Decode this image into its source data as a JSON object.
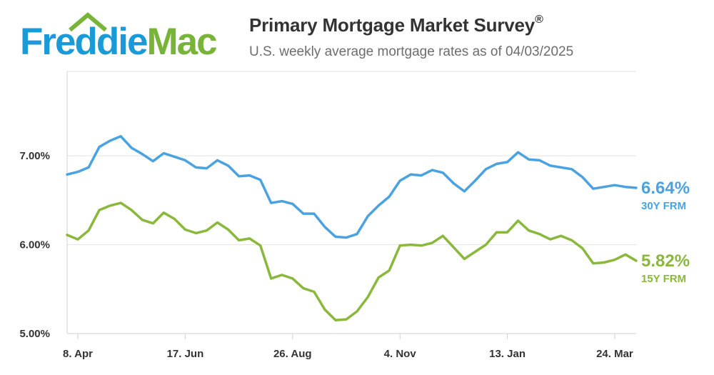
{
  "header": {
    "logo_text": "Freddie Mac",
    "title": "Primary Mortgage Market Survey",
    "title_mark": "®",
    "subtitle": "U.S. weekly average mortgage rates as of 04/03/2025"
  },
  "colors": {
    "series_30y": "#4aa3e0",
    "series_15y": "#8ab83c",
    "logo_blue": "#1a9ad6",
    "logo_green": "#79b43a",
    "grid": "#e3e3e3",
    "axis": "#d0d0d0"
  },
  "chart_data": {
    "type": "line",
    "title": "Primary Mortgage Market Survey",
    "subtitle": "U.S. weekly average mortgage rates as of 04/03/2025",
    "x_tick_labels": [
      "8. Apr",
      "17. Jun",
      "26. Aug",
      "4. Nov",
      "13. Jan",
      "24. Mar"
    ],
    "y_tick_labels": [
      "5.00%",
      "6.00%",
      "7.00%"
    ],
    "ylim": [
      5.0,
      7.95
    ],
    "grid": true,
    "legend": "end-of-line labels",
    "x_start_week": "Mar 28, 2024",
    "x_end_week": "Apr 3, 2025",
    "series": [
      {
        "name": "30Y FRM",
        "last_value_label": "6.64%",
        "values": [
          6.79,
          6.82,
          6.87,
          7.1,
          7.17,
          7.22,
          7.09,
          7.02,
          6.94,
          7.03,
          6.99,
          6.95,
          6.87,
          6.86,
          6.95,
          6.89,
          6.77,
          6.78,
          6.73,
          6.47,
          6.49,
          6.46,
          6.35,
          6.35,
          6.2,
          6.09,
          6.08,
          6.12,
          6.32,
          6.44,
          6.54,
          6.72,
          6.79,
          6.78,
          6.84,
          6.81,
          6.69,
          6.6,
          6.72,
          6.85,
          6.91,
          6.93,
          7.04,
          6.96,
          6.95,
          6.89,
          6.87,
          6.85,
          6.76,
          6.63,
          6.65,
          6.67,
          6.65,
          6.64
        ]
      },
      {
        "name": "15Y FRM",
        "last_value_label": "5.82%",
        "values": [
          6.11,
          6.06,
          6.16,
          6.39,
          6.44,
          6.47,
          6.39,
          6.28,
          6.24,
          6.36,
          6.29,
          6.17,
          6.13,
          6.16,
          6.25,
          6.17,
          6.05,
          6.07,
          5.99,
          5.62,
          5.66,
          5.62,
          5.51,
          5.47,
          5.27,
          5.15,
          5.16,
          5.25,
          5.41,
          5.63,
          5.71,
          5.99,
          6.0,
          5.99,
          6.02,
          6.1,
          5.97,
          5.84,
          5.92,
          6.0,
          6.14,
          6.14,
          6.27,
          6.16,
          6.12,
          6.06,
          6.1,
          6.05,
          5.96,
          5.79,
          5.8,
          5.83,
          5.89,
          5.82
        ]
      }
    ]
  }
}
